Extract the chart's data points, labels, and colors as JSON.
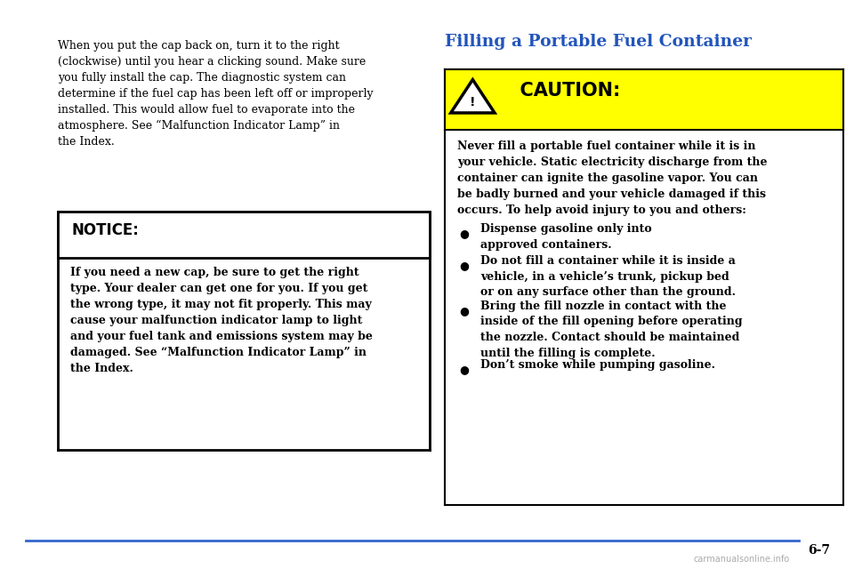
{
  "bg_color": "#ffffff",
  "page_number": "6-7",
  "left_paragraph": "When you put the cap back on, turn it to the right\n(clockwise) until you hear a clicking sound. Make sure\nyou fully install the cap. The diagnostic system can\ndetermine if the fuel cap has been left off or improperly\ninstalled. This would allow fuel to evaporate into the\natmosphere. See “Malfunction Indicator Lamp” in\nthe Index.",
  "notice_title": "NOTICE:",
  "notice_body": "If you need a new cap, be sure to get the right\ntype. Your dealer can get one for you. If you get\nthe wrong type, it may not fit properly. This may\ncause your malfunction indicator lamp to light\nand your fuel tank and emissions system may be\ndamaged. See “Malfunction Indicator Lamp” in\nthe Index.",
  "right_title": "Filling a Portable Fuel Container",
  "title_color": "#2255bb",
  "caution_label": "  CAUTION:",
  "caution_bg": "#ffff00",
  "caution_body": "Never fill a portable fuel container while it is in\nyour vehicle. Static electricity discharge from the\ncontainer can ignite the gasoline vapor. You can\nbe badly burned and your vehicle damaged if this\noccurs. To help avoid injury to you and others:",
  "bullets": [
    "Dispense gasoline only into\napproved containers.",
    "Do not fill a container while it is inside a\nvehicle, in a vehicle’s trunk, pickup bed\nor on any surface other than the ground.",
    "Bring the fill nozzle in contact with the\ninside of the fill opening before operating\nthe nozzle. Contact should be maintained\nuntil the filling is complete.",
    "Don’t smoke while pumping gasoline."
  ],
  "line_color": "#3366cc",
  "watermark": "carmanualsonline.info"
}
